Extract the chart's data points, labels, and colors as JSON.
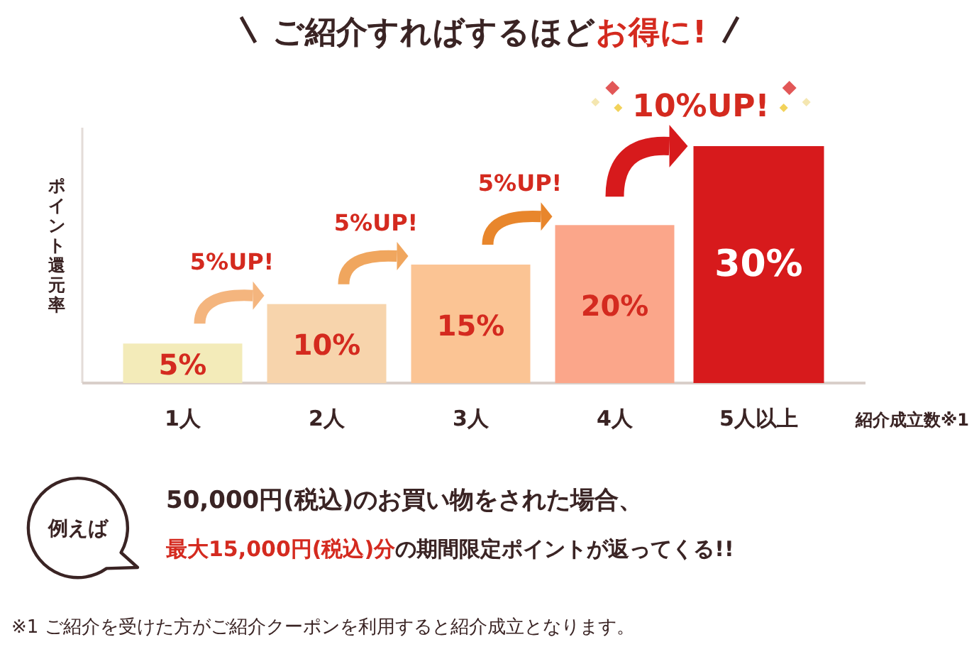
{
  "chart_data": {
    "type": "bar",
    "title": "ご紹介すればするほど**お得に!**",
    "ylabel": "ポイント還元率",
    "xlabel": "紹介成立数※1",
    "categories": [
      "1人",
      "2人",
      "3人",
      "4人",
      "5人以上"
    ],
    "values": [
      5,
      10,
      15,
      20,
      30
    ],
    "colors": [
      "#f3ebb9",
      "#f7d4ac",
      "#fbc494",
      "#fba68a",
      "#d71a1c"
    ],
    "value_labels": [
      "5%",
      "10%",
      "15%",
      "20%",
      "30%"
    ],
    "tick_labels": "x",
    "annotations": [
      "5%UP!",
      "5%UP!",
      "5%UP!",
      "10%UP!",
      "例えば",
      "50,000円(税込)のお買い物をされた場合、",
      "**最大15,000円(税込)分**の期間限定ポイントが返ってくる!!",
      "※1 ご紹介を受けた方がご紹介クーポンを利用すると紹介成立となります。"
    ]
  }
}
